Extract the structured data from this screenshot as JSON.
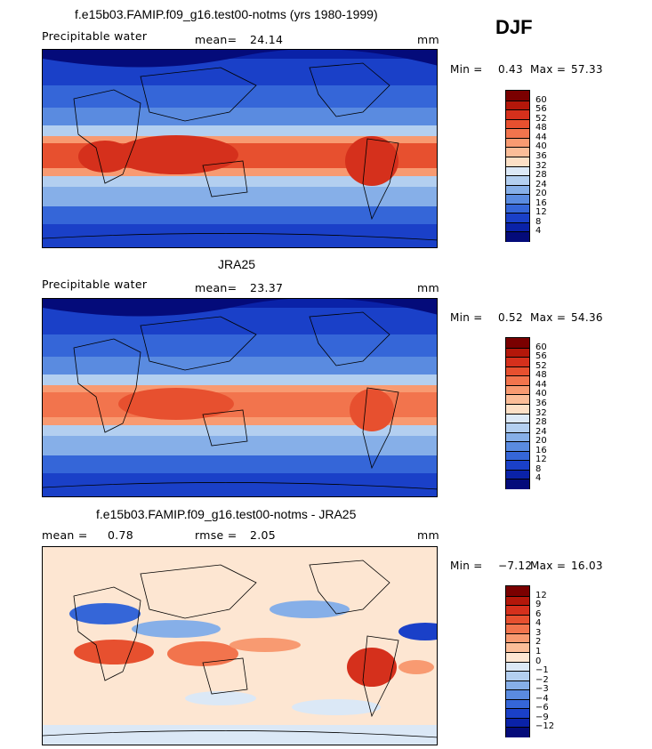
{
  "season": "DJF",
  "panels": [
    {
      "title": "f.e15b03.FAMIP.f09_g16.test00-notms (yrs 1980-1999)",
      "left_label": "Precipitable water",
      "stat_label": "mean=",
      "stat_value": "24.14",
      "stat2_label": "",
      "stat2_value": "",
      "units": "mm",
      "min_label": "Min =",
      "min_value": "0.43",
      "max_label": "Max =",
      "max_value": "57.33",
      "kind": "field"
    },
    {
      "title": "JRA25",
      "left_label": "Precipitable water",
      "stat_label": "mean=",
      "stat_value": "23.37",
      "stat2_label": "",
      "stat2_value": "",
      "units": "mm",
      "min_label": "Min =",
      "min_value": "0.52",
      "max_label": "Max =",
      "max_value": "54.36",
      "kind": "field"
    },
    {
      "title": "f.e15b03.FAMIP.f09_g16.test00-notms - JRA25",
      "left_label": "mean =",
      "stat_label": "",
      "stat_value": "0.78",
      "stat2_label": "rmse =",
      "stat2_value": "2.05",
      "units": "mm",
      "min_label": "Min =",
      "min_value": "−7.12",
      "max_label": "Max =",
      "max_value": "16.03",
      "kind": "diff"
    }
  ],
  "colorbars": {
    "field": {
      "labels": [
        "60",
        "56",
        "52",
        "48",
        "44",
        "40",
        "36",
        "32",
        "28",
        "24",
        "20",
        "16",
        "12",
        "8",
        "4"
      ],
      "colors": [
        "#7a0000",
        "#b3170a",
        "#d5301c",
        "#e7502f",
        "#f2744d",
        "#f89a71",
        "#fbbd98",
        "#fde0c6",
        "#dce9f7",
        "#b3cff0",
        "#86afe8",
        "#5a8be0",
        "#3566d8",
        "#1a40c8",
        "#0a22a8",
        "#040b7a"
      ]
    },
    "diff": {
      "labels": [
        "12",
        "9",
        "6",
        "4",
        "3",
        "2",
        "1",
        "0",
        "−1",
        "−2",
        "−3",
        "−4",
        "−6",
        "−9",
        "−12"
      ],
      "colors": [
        "#7a0000",
        "#b3170a",
        "#d5301c",
        "#e7502f",
        "#f2744d",
        "#f89a71",
        "#fbbd98",
        "#fde6d2",
        "#dbe8f6",
        "#b3cff0",
        "#86afe8",
        "#5a8be0",
        "#3566d8",
        "#1a40c8",
        "#0a22a8",
        "#040b7a"
      ]
    }
  }
}
